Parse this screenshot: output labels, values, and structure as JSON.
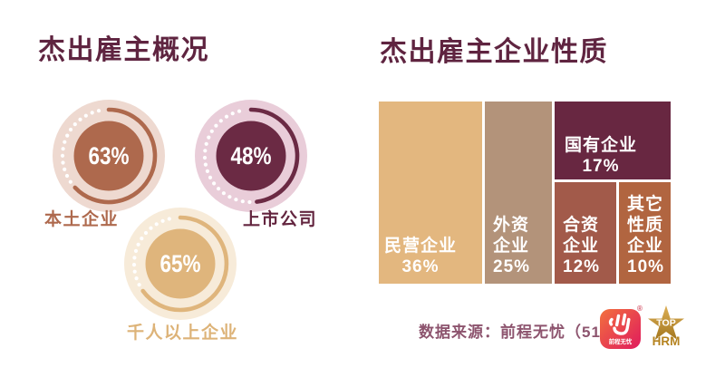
{
  "titles": {
    "left": "杰出雇主概况",
    "right": "杰出雇主企业性质"
  },
  "source": {
    "text": "数据来源：前程无忧（51job）"
  },
  "logos": {
    "job51": {
      "caption": "前程无忧",
      "registered_mark": "®"
    },
    "tophrm": {
      "line1": "TOP",
      "line2": "HRM"
    }
  },
  "colors": {
    "title_maroon": "#5f2440",
    "source_plum": "#8d546e",
    "background": "#ffffff"
  },
  "chart_data": [
    {
      "type": "pie",
      "subtype": "donut-gauges",
      "title": "杰出雇主概况",
      "unit": "%",
      "items": [
        {
          "label": "本土企业",
          "value": 63,
          "display": "63%",
          "ring_color": "#eed9d0",
          "fill_color": "#ae694d",
          "label_color": "#ae694d"
        },
        {
          "label": "上市公司",
          "value": 48,
          "display": "48%",
          "ring_color": "#e9cdd9",
          "fill_color": "#6b2a44",
          "label_color": "#63253f"
        },
        {
          "label": "千人以上企业",
          "value": 65,
          "display": "65%",
          "ring_color": "#f7ebd9",
          "fill_color": "#dfb57c",
          "label_color": "#ddb378"
        }
      ]
    },
    {
      "type": "heatmap",
      "subtype": "treemap",
      "title": "杰出雇主企业性质",
      "unit": "%",
      "items": [
        {
          "label": "民营企业",
          "value": 36,
          "display": "36%",
          "color": "#e3b77f",
          "lines": [
            "民营企业",
            "36%"
          ]
        },
        {
          "label": "外资企业",
          "value": 25,
          "display": "25%",
          "color": "#b3937a",
          "lines": [
            "外资",
            "企业",
            "25%"
          ]
        },
        {
          "label": "国有企业",
          "value": 17,
          "display": "17%",
          "color": "#682741",
          "lines": [
            "国有企业",
            "17%"
          ]
        },
        {
          "label": "合资企业",
          "value": 12,
          "display": "12%",
          "color": "#a25a4a",
          "lines": [
            "合资",
            "企业",
            "12%"
          ]
        },
        {
          "label": "其它性质企业",
          "value": 10,
          "display": "10%",
          "color": "#b16540",
          "lines": [
            "其它",
            "性质",
            "企业",
            "10%"
          ]
        }
      ]
    }
  ]
}
